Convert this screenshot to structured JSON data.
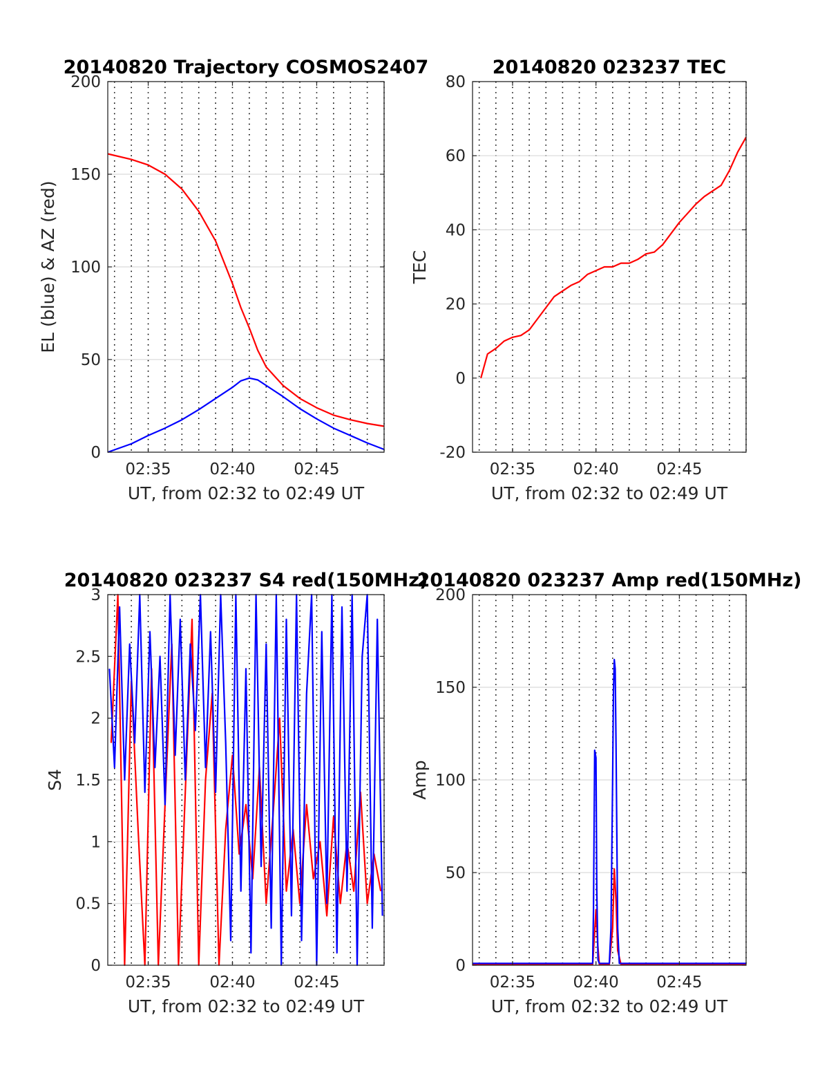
{
  "colors": {
    "red": "#ff0000",
    "blue": "#0000ff",
    "grid_vertical": "#000000",
    "grid_horizontal": "#d9d9d9",
    "axis": "#262626"
  },
  "chart_data": [
    {
      "type": "line",
      "title": "20140820 Trajectory COSMOS2407",
      "xlabel": "UT, from 02:32 to 02:49 UT",
      "ylabel": "EL (blue) & AZ (red)",
      "x_unit": "minutes after 02:00 UT",
      "xlim": [
        32.6,
        49.0
      ],
      "ylim": [
        0,
        200
      ],
      "xticks": [
        35,
        40,
        45
      ],
      "xtick_labels": [
        "02:35",
        "02:40",
        "02:45"
      ],
      "yticks": [
        0,
        50,
        100,
        150,
        200
      ],
      "ytick_labels": [
        "0",
        "50",
        "100",
        "150",
        "200"
      ],
      "grid": "vertical dotted every minute, horizontal light gray at y ticks",
      "series": [
        {
          "color": "red",
          "x": [
            32.6,
            34,
            35,
            36,
            37,
            38,
            39,
            40,
            40.5,
            41,
            41.5,
            42,
            43,
            44,
            45,
            46,
            47,
            48,
            49
          ],
          "values": [
            161,
            158,
            155,
            150,
            142,
            130,
            114,
            91,
            78,
            67,
            55,
            46,
            36,
            29,
            24,
            20,
            17.5,
            15.5,
            14
          ]
        },
        {
          "color": "blue",
          "x": [
            32.6,
            34,
            35,
            36,
            37,
            38,
            39,
            40,
            40.5,
            41,
            41.5,
            42,
            43,
            44,
            45,
            46,
            47,
            48,
            49
          ],
          "values": [
            0,
            4.5,
            9,
            13,
            17.5,
            23,
            29,
            35,
            38.5,
            40,
            39,
            36,
            30,
            23.5,
            18,
            13,
            9,
            5,
            1.5
          ]
        }
      ]
    },
    {
      "type": "line",
      "title": "20140820 023237 TEC",
      "xlabel": "UT, from 02:32 to 02:49 UT",
      "ylabel": "TEC",
      "x_unit": "minutes after 02:00 UT",
      "xlim": [
        32.6,
        49.0
      ],
      "ylim": [
        -20,
        80
      ],
      "xticks": [
        35,
        40,
        45
      ],
      "xtick_labels": [
        "02:35",
        "02:40",
        "02:45"
      ],
      "yticks": [
        -20,
        0,
        20,
        40,
        60,
        80
      ],
      "ytick_labels": [
        "-20",
        "0",
        "20",
        "40",
        "60",
        "80"
      ],
      "grid": "vertical dotted every minute, horizontal light gray at y ticks",
      "series": [
        {
          "color": "red",
          "x": [
            33.1,
            33.5,
            34,
            34.5,
            35,
            35.5,
            36,
            36.5,
            37,
            37.5,
            38,
            38.5,
            39,
            39.5,
            40,
            40.5,
            41,
            41.5,
            42,
            42.5,
            43,
            43.5,
            44,
            44.5,
            45,
            45.5,
            46,
            46.5,
            47,
            47.5,
            48,
            48.5,
            49
          ],
          "values": [
            0,
            6.5,
            8,
            10,
            11,
            11.5,
            13,
            16,
            19,
            22,
            23.5,
            25,
            26,
            28,
            29,
            30,
            30,
            31,
            31,
            32,
            33.5,
            34,
            36,
            39,
            42,
            44.5,
            47,
            49,
            50.5,
            52,
            56,
            61,
            65
          ]
        }
      ]
    },
    {
      "type": "line",
      "title": "20140820 023237 S4 red(150MHz)",
      "xlabel": "UT, from 02:32 to 02:49 UT",
      "ylabel": "S4",
      "x_unit": "minutes after 02:00 UT",
      "xlim": [
        32.6,
        49.0
      ],
      "ylim": [
        0,
        3
      ],
      "xticks": [
        35,
        40,
        45
      ],
      "xtick_labels": [
        "02:35",
        "02:40",
        "02:45"
      ],
      "yticks": [
        0,
        0.5,
        1,
        1.5,
        2,
        2.5,
        3
      ],
      "ytick_labels": [
        "0",
        "0.5",
        "1",
        "1.5",
        "2",
        "2.5",
        "3"
      ],
      "grid": "vertical dotted every minute, horizontal light gray at y ticks",
      "series": [
        {
          "color": "red",
          "x": [
            32.8,
            33.2,
            33.6,
            34.0,
            34.4,
            34.8,
            35.2,
            35.6,
            36.0,
            36.4,
            36.8,
            37.2,
            37.6,
            38.0,
            38.4,
            38.8,
            39.2,
            39.6,
            40.0,
            40.4,
            40.8,
            41.2,
            41.6,
            42.0,
            42.4,
            42.8,
            43.2,
            43.6,
            44.0,
            44.4,
            44.8,
            45.2,
            45.6,
            46.0,
            46.4,
            46.8,
            47.2,
            47.6,
            48.0,
            48.4,
            48.8
          ],
          "values": [
            1.8,
            3.0,
            0.0,
            2.3,
            1.1,
            0.0,
            2.4,
            0.0,
            1.3,
            2.6,
            0.0,
            1.4,
            2.8,
            0.0,
            1.5,
            2.2,
            0.0,
            1.1,
            1.7,
            0.9,
            1.3,
            0.7,
            1.6,
            0.5,
            1.2,
            2.0,
            0.6,
            1.1,
            0.5,
            1.3,
            0.7,
            1.0,
            0.4,
            1.2,
            0.5,
            1.0,
            0.6,
            1.4,
            0.5,
            0.9,
            0.6
          ]
        },
        {
          "color": "blue",
          "x": [
            32.7,
            33.0,
            33.3,
            33.6,
            33.9,
            34.2,
            34.5,
            34.8,
            35.1,
            35.4,
            35.7,
            36.0,
            36.3,
            36.6,
            36.9,
            37.2,
            37.5,
            37.8,
            38.1,
            38.4,
            38.7,
            39.0,
            39.3,
            39.6,
            39.9,
            40.2,
            40.5,
            40.8,
            41.1,
            41.4,
            41.7,
            42.0,
            42.3,
            42.6,
            42.9,
            43.2,
            43.5,
            43.8,
            44.1,
            44.4,
            44.7,
            45.0,
            45.3,
            45.6,
            45.9,
            46.2,
            46.5,
            46.8,
            47.1,
            47.4,
            47.7,
            48.0,
            48.3,
            48.6,
            48.9
          ],
          "values": [
            2.4,
            1.6,
            2.9,
            1.5,
            2.6,
            1.8,
            3.0,
            1.4,
            2.7,
            1.6,
            2.5,
            1.3,
            3.0,
            1.7,
            2.8,
            1.5,
            2.6,
            1.9,
            3.0,
            1.6,
            2.7,
            1.4,
            3.0,
            1.8,
            0.2,
            3.0,
            0.6,
            2.4,
            0.1,
            3.0,
            0.8,
            2.6,
            0.3,
            3.0,
            0.0,
            2.8,
            0.4,
            3.0,
            0.2,
            2.2,
            3.0,
            0.0,
            2.7,
            0.5,
            3.0,
            0.1,
            2.9,
            0.6,
            3.0,
            0.0,
            2.5,
            3.0,
            0.3,
            2.8,
            0.4
          ]
        }
      ]
    },
    {
      "type": "line",
      "title": "20140820 023237 Amp red(150MHz)",
      "xlabel": "UT, from 02:32 to 02:49 UT",
      "ylabel": "Amp",
      "x_unit": "minutes after 02:00 UT",
      "xlim": [
        32.6,
        49.0
      ],
      "ylim": [
        0,
        200
      ],
      "xticks": [
        35,
        40,
        45
      ],
      "xtick_labels": [
        "02:35",
        "02:40",
        "02:45"
      ],
      "yticks": [
        0,
        50,
        100,
        150,
        200
      ],
      "ytick_labels": [
        "0",
        "50",
        "100",
        "150",
        "200"
      ],
      "grid": "vertical dotted every minute, horizontal light gray at y ticks",
      "series": [
        {
          "color": "red",
          "x": [
            32.6,
            39.8,
            39.9,
            40.0,
            40.1,
            40.2,
            40.8,
            41.0,
            41.1,
            41.2,
            41.3,
            41.5,
            49.0
          ],
          "values": [
            0.5,
            0.5,
            15,
            30,
            12,
            0.5,
            0.5,
            20,
            52,
            35,
            8,
            0.5,
            0.5
          ]
        },
        {
          "color": "blue",
          "x": [
            32.6,
            39.8,
            39.85,
            39.92,
            40.0,
            40.05,
            40.12,
            40.2,
            40.8,
            40.9,
            41.0,
            41.05,
            41.1,
            41.15,
            41.2,
            41.3,
            41.4,
            49.0
          ],
          "values": [
            1,
            1,
            30,
            116,
            112,
            40,
            3,
            1,
            1,
            20,
            100,
            148,
            165,
            160,
            120,
            20,
            1,
            1
          ]
        }
      ]
    }
  ]
}
